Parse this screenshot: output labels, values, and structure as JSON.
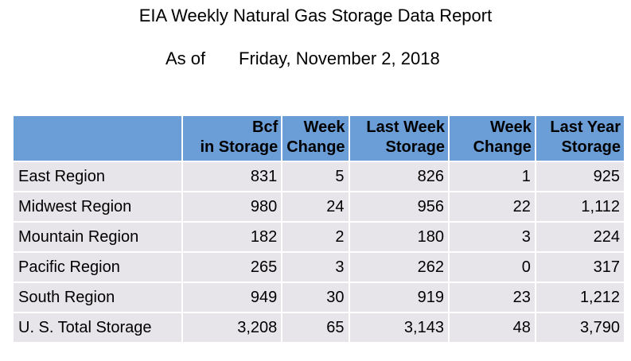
{
  "title": "EIA Weekly Natural Gas Storage Data Report",
  "as_of_label": "As of",
  "as_of_date": "Friday, November 2, 2018",
  "table": {
    "headers": [
      {
        "lines": [
          "",
          ""
        ]
      },
      {
        "lines": [
          "Bcf",
          "in Storage"
        ]
      },
      {
        "lines": [
          "Week",
          "Change"
        ]
      },
      {
        "lines": [
          "Last Week",
          "Storage"
        ]
      },
      {
        "lines": [
          "Week",
          "Change"
        ]
      },
      {
        "lines": [
          "Last Year",
          "Storage"
        ]
      }
    ],
    "rows": [
      {
        "region": "East Region",
        "values": [
          "831",
          "5",
          "826",
          "1",
          "925"
        ]
      },
      {
        "region": "Midwest Region",
        "values": [
          "980",
          "24",
          "956",
          "22",
          "1,112"
        ]
      },
      {
        "region": "Mountain Region",
        "values": [
          "182",
          "2",
          "180",
          "3",
          "224"
        ]
      },
      {
        "region": "Pacific Region",
        "values": [
          "265",
          "3",
          "262",
          "0",
          "317"
        ]
      },
      {
        "region": "South Region",
        "values": [
          "949",
          "30",
          "919",
          "23",
          "1,212"
        ]
      },
      {
        "region": "U. S. Total Storage",
        "values": [
          "3,208",
          "65",
          "3,143",
          "48",
          "3,790"
        ]
      }
    ]
  },
  "colors": {
    "header_bg": "#6b9ed6",
    "cell_bg": "#e8e5ea"
  }
}
